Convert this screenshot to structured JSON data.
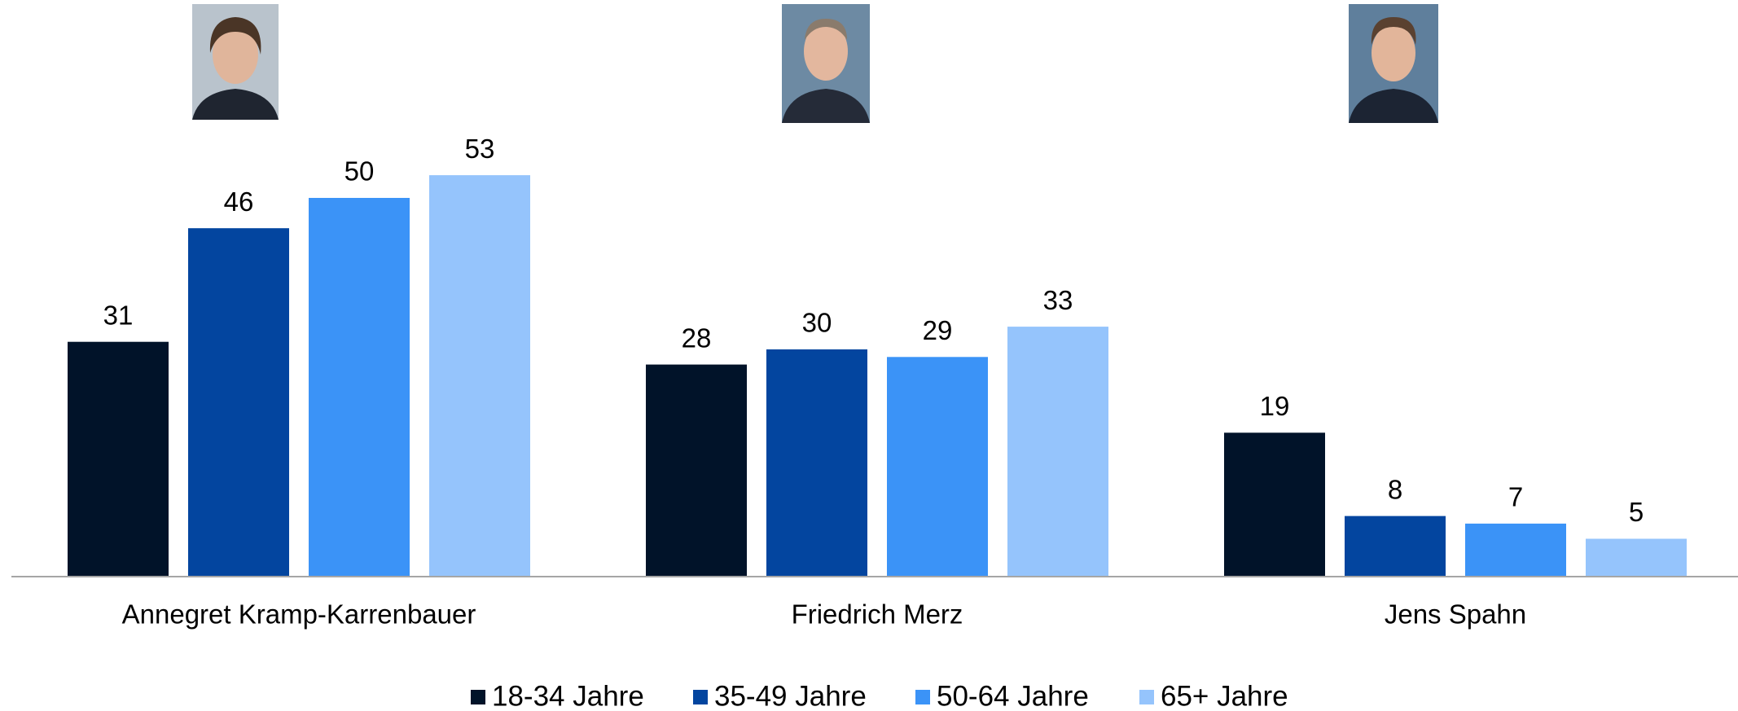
{
  "chart_data": {
    "type": "bar",
    "categories": [
      "Annegret Kramp-Karrenbauer",
      "Friedrich Merz",
      "Jens Spahn"
    ],
    "series": [
      {
        "name": "18-34 Jahre",
        "color": "#011329",
        "values": [
          31,
          28,
          19
        ]
      },
      {
        "name": "35-49 Jahre",
        "color": "#03459f",
        "values": [
          46,
          30,
          8
        ]
      },
      {
        "name": "50-64 Jahre",
        "color": "#3b93f7",
        "values": [
          50,
          29,
          7
        ]
      },
      {
        "name": "65+ Jahre",
        "color": "#95c4fc",
        "values": [
          53,
          33,
          5
        ]
      }
    ],
    "ylim": [
      0,
      60
    ],
    "legend": "bottom"
  }
}
